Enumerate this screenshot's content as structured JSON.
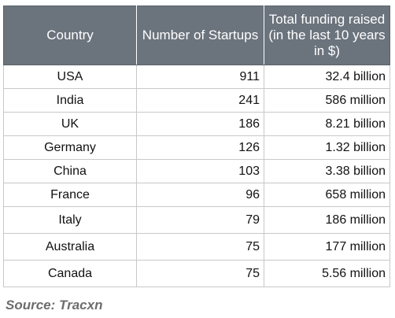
{
  "table": {
    "headers": {
      "country": "Country",
      "startups": "Number of Startups",
      "funding": "Total funding raised (in the last 10 years in $)"
    },
    "rows": [
      {
        "country": "USA",
        "startups": "911",
        "funding": "32.4 billion"
      },
      {
        "country": "India",
        "startups": "241",
        "funding": "586 million"
      },
      {
        "country": "UK",
        "startups": "186",
        "funding": "8.21 billion"
      },
      {
        "country": "Germany",
        "startups": "126",
        "funding": "1.32 billion"
      },
      {
        "country": "China",
        "startups": "103",
        "funding": "3.38 billion"
      },
      {
        "country": "France",
        "startups": "96",
        "funding": "658 million"
      },
      {
        "country": "Italy",
        "startups": "79",
        "funding": "186 million"
      },
      {
        "country": "Australia",
        "startups": "75",
        "funding": "177 million"
      },
      {
        "country": "Canada",
        "startups": "75",
        "funding": "5.56 million"
      }
    ]
  },
  "source": "Source: Tracxn",
  "colors": {
    "header_bg": "#6b737d",
    "header_text": "#ffffff",
    "source_text": "#6d6d6d"
  }
}
